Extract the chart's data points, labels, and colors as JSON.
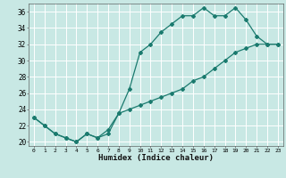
{
  "title": "",
  "xlabel": "Humidex (Indice chaleur)",
  "background_color": "#c8e8e4",
  "grid_color": "#ffffff",
  "line_color": "#1a7a6e",
  "xlim": [
    -0.5,
    23.5
  ],
  "ylim": [
    19.5,
    37.0
  ],
  "yticks": [
    20,
    22,
    24,
    26,
    28,
    30,
    32,
    34,
    36
  ],
  "xticks": [
    0,
    1,
    2,
    3,
    4,
    5,
    6,
    7,
    8,
    9,
    10,
    11,
    12,
    13,
    14,
    15,
    16,
    17,
    18,
    19,
    20,
    21,
    22,
    23
  ],
  "line1_x": [
    0,
    1,
    2,
    3,
    4,
    5,
    6,
    7,
    8,
    9,
    10,
    11,
    12,
    13,
    14,
    15,
    16,
    17,
    18,
    19,
    20,
    21,
    22,
    23
  ],
  "line1_y": [
    23.0,
    22.0,
    21.0,
    20.5,
    20.0,
    21.0,
    20.5,
    21.0,
    23.5,
    26.5,
    31.0,
    32.0,
    33.5,
    34.5,
    35.5,
    35.5,
    36.5,
    35.5,
    35.5,
    36.5,
    35.0,
    33.0,
    32.0,
    32.0
  ],
  "line2_x": [
    0,
    1,
    2,
    3,
    4,
    5,
    6,
    7,
    8,
    9,
    10,
    11,
    12,
    13,
    14,
    15,
    16,
    17,
    18,
    19,
    20,
    21,
    22,
    23
  ],
  "line2_y": [
    23.0,
    22.0,
    21.0,
    20.5,
    20.0,
    21.0,
    20.5,
    21.5,
    23.5,
    24.0,
    24.5,
    25.0,
    25.5,
    26.0,
    26.5,
    27.5,
    28.0,
    29.0,
    30.0,
    31.0,
    31.5,
    32.0,
    32.0,
    32.0
  ]
}
